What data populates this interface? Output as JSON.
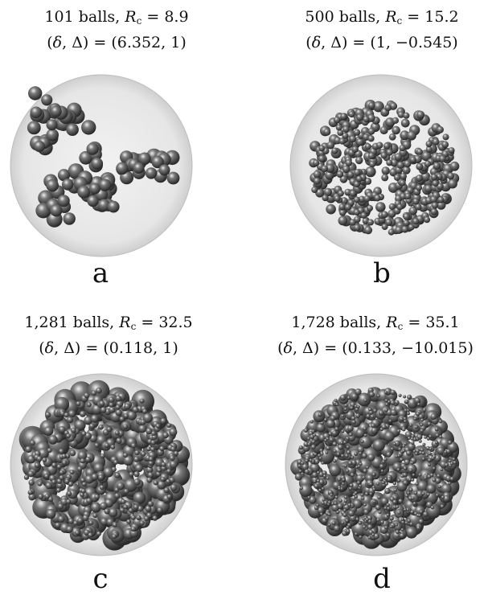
{
  "panels": [
    {
      "id": "a",
      "label": "a",
      "count": "101 balls,",
      "r_value": "8.9",
      "params": "(6.352, 1)",
      "delta": "6.352",
      "Delta": "1"
    },
    {
      "id": "b",
      "label": "b",
      "count": "500 balls,",
      "r_value": "15.2",
      "params": "(1, −0.545)",
      "delta": "1",
      "Delta": "−0.545"
    },
    {
      "id": "c",
      "label": "c",
      "count": "1,281 balls,",
      "r_value": "32.5",
      "params": "(0.118, 1)",
      "delta": "0.118",
      "Delta": "1"
    },
    {
      "id": "d",
      "label": "d",
      "count": "1,728 balls,",
      "r_value": "35.1",
      "params": "(0.133, −10.015)",
      "delta": "0.133",
      "Delta": "−10.015"
    }
  ],
  "colors": {
    "container": "#e6e6e6",
    "ball_dark": "#2a2a2a",
    "ball_mid": "#7a7a7a",
    "ball_light": "#efefef"
  }
}
